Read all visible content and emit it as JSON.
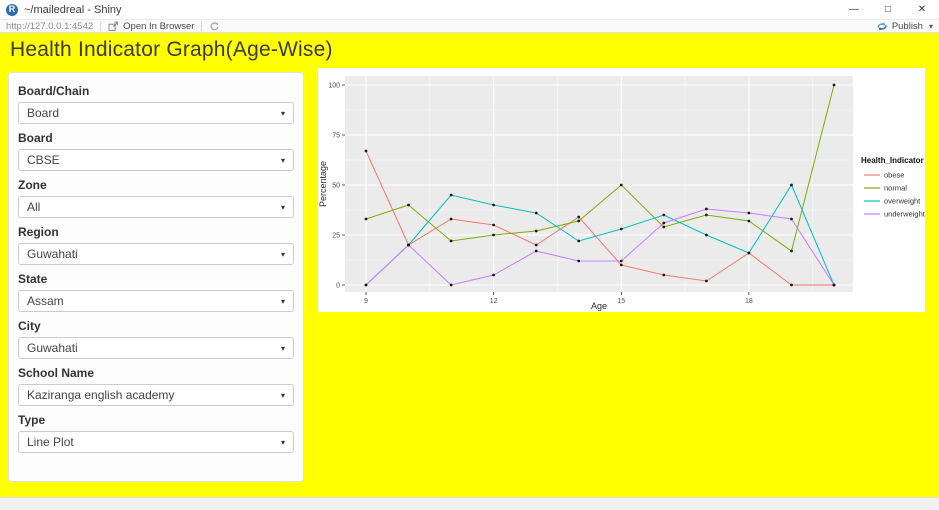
{
  "window": {
    "title": "~/mailedreal - Shiny"
  },
  "icons": {
    "caret": "▾",
    "minimize": "—",
    "restore": "□",
    "close": "✕"
  },
  "toolbar": {
    "url": "http://127.0.0.1:4542",
    "open_in_browser": "Open In Browser",
    "publish": "Publish"
  },
  "page": {
    "title": "Health Indicator Graph(Age-Wise)"
  },
  "sidebar": {
    "fields": [
      {
        "label": "Board/Chain",
        "value": "Board"
      },
      {
        "label": "Board",
        "value": "CBSE"
      },
      {
        "label": "Zone",
        "value": "All"
      },
      {
        "label": "Region",
        "value": "Guwahati"
      },
      {
        "label": "State",
        "value": "Assam"
      },
      {
        "label": "City",
        "value": "Guwahati"
      },
      {
        "label": "School Name",
        "value": "Kaziranga english academy"
      },
      {
        "label": "Type",
        "value": "Line Plot"
      }
    ]
  },
  "colors": {
    "content_bg": "#ffff00",
    "panel_bg": "#ebebeb",
    "gridline": "#ffffff",
    "tick_label": "#4d4d4d",
    "axis_title": "#2b2b2b",
    "point": "#1a1a1a"
  },
  "chart_data": {
    "type": "line",
    "title": "",
    "xlabel": "Age",
    "ylabel": "Percentage",
    "legend_title": "Health_Indicator",
    "legend_position": "right",
    "grid": true,
    "x": [
      9,
      10,
      11,
      12,
      13,
      14,
      15,
      16,
      17,
      18,
      19,
      20
    ],
    "xticks": [
      9,
      12,
      15,
      18
    ],
    "x_minor": [
      10.5,
      13.5,
      16.5,
      19.5
    ],
    "yticks": [
      0,
      25,
      50,
      75,
      100
    ],
    "y_minor": [
      12.5,
      37.5,
      62.5,
      87.5
    ],
    "xlim": [
      9,
      20
    ],
    "ylim": [
      0,
      100
    ],
    "series": [
      {
        "name": "obese",
        "color": "#F8766D",
        "values": [
          67,
          20,
          33,
          30,
          20,
          34,
          10,
          5,
          2,
          16,
          0,
          0
        ]
      },
      {
        "name": "normal",
        "color": "#7CAE00",
        "values": [
          33,
          40,
          22,
          25,
          27,
          32,
          50,
          29,
          35,
          32,
          17,
          100
        ]
      },
      {
        "name": "overweight",
        "color": "#00BFC4",
        "values": [
          0,
          20,
          45,
          40,
          36,
          22,
          28,
          35,
          25,
          16,
          50,
          0
        ]
      },
      {
        "name": "underweight",
        "color": "#C77CFF",
        "values": [
          0,
          20,
          0,
          5,
          17,
          12,
          12,
          31,
          38,
          36,
          33,
          0
        ]
      }
    ]
  }
}
